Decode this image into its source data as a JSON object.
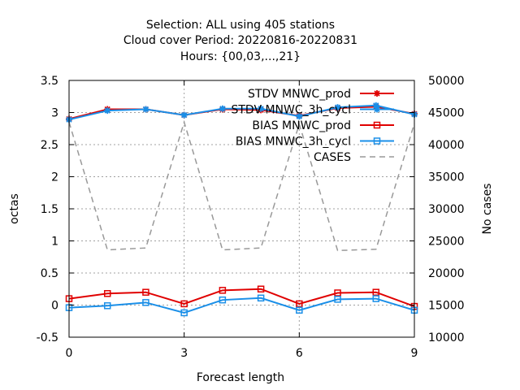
{
  "chart_data": {
    "type": "line",
    "title_lines": [
      "Selection: ALL using   405 stations",
      "Cloud cover   Period: 20220816-20220831",
      "Hours: {00,03,...,21}"
    ],
    "xlabel": "Forecast length",
    "ylabel": "octas",
    "y2label": "No cases",
    "x": [
      0,
      1,
      2,
      3,
      4,
      5,
      6,
      7,
      8,
      9
    ],
    "xlim": [
      0,
      9
    ],
    "xticks": [
      "0",
      "3",
      "6",
      "9"
    ],
    "xtick_values": [
      0,
      3,
      6,
      9
    ],
    "ylim": [
      -0.5,
      3.5
    ],
    "yticks": [
      "-0.5",
      "0",
      "0.5",
      "1",
      "1.5",
      "2",
      "2.5",
      "3",
      "3.5"
    ],
    "ytick_values": [
      -0.5,
      0,
      0.5,
      1,
      1.5,
      2,
      2.5,
      3,
      3.5
    ],
    "y2lim": [
      10000,
      50000
    ],
    "y2ticks": [
      "10000",
      "15000",
      "20000",
      "25000",
      "30000",
      "35000",
      "40000",
      "45000",
      "50000"
    ],
    "y2tick_values": [
      10000,
      15000,
      20000,
      25000,
      30000,
      35000,
      40000,
      45000,
      50000
    ],
    "grid": true,
    "legend_position": "top-right",
    "series": [
      {
        "name": "STDV MNWC_prod",
        "axis": "y1",
        "color": "#e00000",
        "marker": "star",
        "values": [
          2.9,
          3.05,
          3.05,
          2.96,
          3.05,
          3.04,
          2.95,
          3.07,
          3.09,
          2.98
        ]
      },
      {
        "name": "STDV MNWC_3h_cycl",
        "axis": "y1",
        "color": "#1a8fe8",
        "marker": "star",
        "values": [
          2.89,
          3.03,
          3.05,
          2.96,
          3.06,
          3.06,
          2.94,
          3.08,
          3.11,
          2.97
        ]
      },
      {
        "name": "BIAS MNWC_prod",
        "axis": "y1",
        "color": "#e00000",
        "marker": "square",
        "values": [
          0.1,
          0.18,
          0.2,
          0.02,
          0.23,
          0.25,
          0.02,
          0.19,
          0.2,
          -0.02
        ]
      },
      {
        "name": "BIAS MNWC_3h_cycl",
        "axis": "y1",
        "color": "#1a8fe8",
        "marker": "square",
        "values": [
          -0.04,
          -0.01,
          0.04,
          -0.12,
          0.08,
          0.11,
          -0.08,
          0.09,
          0.1,
          -0.08
        ]
      },
      {
        "name": "CASES",
        "axis": "y2",
        "color": "#999999",
        "marker": "none",
        "dashed": true,
        "values": [
          43500,
          23600,
          23900,
          43500,
          23600,
          23900,
          43200,
          23500,
          23700,
          43300
        ]
      }
    ]
  }
}
